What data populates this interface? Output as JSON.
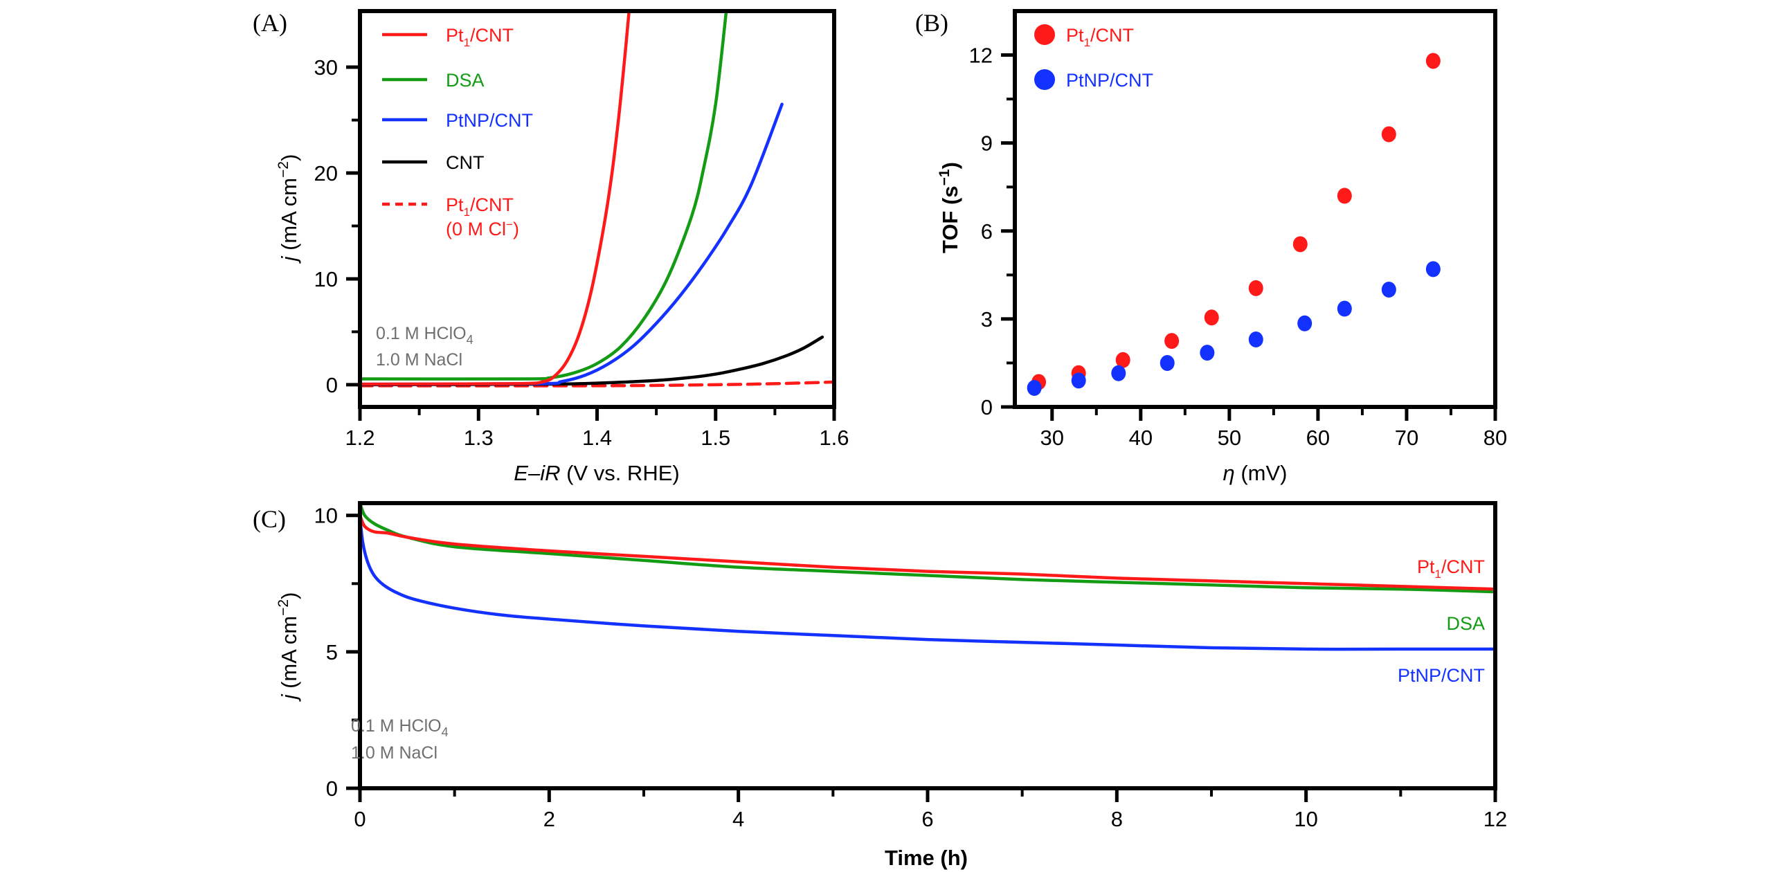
{
  "figure": {
    "panel_labels": [
      "(A)",
      "(B)",
      "(C)"
    ]
  },
  "colors": {
    "Pt1/CNT": "#ff1a1a",
    "DSA": "#139c13",
    "PtNP/CNT": "#1432ff",
    "CNT": "#000000",
    "note": "#6f6f6f"
  },
  "chart_data": [
    {
      "panel": "A",
      "type": "line",
      "title": "",
      "xlabel_italic": "E–iR",
      "xlabel_rest": " (V vs. RHE)",
      "ylabel_italic": "j",
      "ylabel_rest": " (mA cm",
      "ylabel_sup": "−2",
      "ylabel_close": ")",
      "xlim": [
        1.2,
        1.6
      ],
      "ylim": [
        -2.1,
        35.3
      ],
      "xticks": [
        1.2,
        1.3,
        1.4,
        1.5,
        1.6
      ],
      "xtick_labels": [
        "1.2",
        "1.3",
        "1.4",
        "1.5",
        "1.6"
      ],
      "xminor": [
        1.25,
        1.35,
        1.45,
        1.55
      ],
      "yticks": [
        0,
        10,
        20,
        30
      ],
      "ytick_labels": [
        "0",
        "10",
        "20",
        "30"
      ],
      "yminor": [
        5,
        15,
        25
      ],
      "grid": false,
      "legend_position": "top-left",
      "annotation": [
        "0.1 M HClO",
        "4",
        "1.0 M NaCl"
      ],
      "series": [
        {
          "name": "Pt1/CNT",
          "label_main": "Pt",
          "label_sub": "1",
          "label_rest": "/CNT",
          "color_key": "Pt1/CNT",
          "dash": false,
          "x": [
            1.2,
            1.33,
            1.355,
            1.365,
            1.375,
            1.385,
            1.395,
            1.405,
            1.412,
            1.418,
            1.423,
            1.427
          ],
          "y": [
            0.05,
            0.1,
            0.3,
            0.9,
            2.3,
            4.8,
            8.8,
            14.5,
            19.5,
            25.0,
            30.5,
            35.3
          ]
        },
        {
          "name": "DSA",
          "label_main": "DSA",
          "label_sub": "",
          "label_rest": "",
          "color_key": "DSA",
          "dash": false,
          "x": [
            1.2,
            1.34,
            1.36,
            1.38,
            1.4,
            1.42,
            1.44,
            1.46,
            1.48,
            1.49,
            1.5,
            1.509
          ],
          "y": [
            0.55,
            0.55,
            0.65,
            1.1,
            2.0,
            3.6,
            6.3,
            10.2,
            16.0,
            20.5,
            26.5,
            35.3
          ]
        },
        {
          "name": "PtNP/CNT",
          "label_main": "PtNP/CNT",
          "label_sub": "",
          "label_rest": "",
          "color_key": "PtNP/CNT",
          "dash": false,
          "x": [
            1.2,
            1.35,
            1.37,
            1.39,
            1.41,
            1.43,
            1.45,
            1.47,
            1.49,
            1.51,
            1.53,
            1.556
          ],
          "y": [
            0.05,
            0.1,
            0.3,
            0.9,
            2.0,
            3.6,
            5.8,
            8.4,
            11.4,
            14.8,
            18.9,
            26.5
          ]
        },
        {
          "name": "CNT",
          "label_main": "CNT",
          "label_sub": "",
          "label_rest": "",
          "color_key": "CNT",
          "dash": false,
          "x": [
            1.2,
            1.35,
            1.4,
            1.45,
            1.48,
            1.5,
            1.52,
            1.54,
            1.56,
            1.575,
            1.59
          ],
          "y": [
            0.0,
            0.05,
            0.15,
            0.4,
            0.7,
            1.0,
            1.45,
            2.0,
            2.75,
            3.5,
            4.5
          ]
        },
        {
          "name": "Pt1/CNT (0 M Cl-)",
          "label_main": "Pt",
          "label_sub": "1",
          "label_rest": "/CNT",
          "label_line2": "(0 M Cl",
          "label_line2_sup": "−",
          "label_line2_close": ")",
          "color_key": "Pt1/CNT",
          "dash": true,
          "x": [
            1.2,
            1.4,
            1.5,
            1.55,
            1.6
          ],
          "y": [
            -0.1,
            -0.1,
            0.0,
            0.1,
            0.25
          ]
        }
      ]
    },
    {
      "panel": "B",
      "type": "scatter",
      "title": "",
      "xlabel_italic": "η",
      "xlabel_rest": " (mV)",
      "ylabel_main": "TOF (s",
      "ylabel_sup": "−1",
      "ylabel_close": ")",
      "xlim": [
        25.8,
        80
      ],
      "ylim": [
        0,
        13.5
      ],
      "xticks": [
        30,
        40,
        50,
        60,
        70,
        80
      ],
      "xtick_labels": [
        "30",
        "40",
        "50",
        "60",
        "70",
        "80"
      ],
      "xminor": [
        25,
        35,
        45,
        55,
        65,
        75
      ],
      "yticks": [
        0,
        3,
        6,
        9,
        12
      ],
      "ytick_labels": [
        "0",
        "3",
        "6",
        "9",
        "12"
      ],
      "yminor": [
        1.5,
        4.5,
        7.5,
        10.5
      ],
      "grid": false,
      "legend_position": "top-left",
      "series": [
        {
          "name": "Pt1/CNT",
          "label_main": "Pt",
          "label_sub": "1",
          "label_rest": "/CNT",
          "color_key": "Pt1/CNT",
          "x": [
            28.5,
            33,
            38,
            43.5,
            48,
            53,
            58,
            63,
            68,
            73
          ],
          "y": [
            0.85,
            1.15,
            1.6,
            2.25,
            3.05,
            4.05,
            5.55,
            7.2,
            9.3,
            11.8
          ]
        },
        {
          "name": "PtNP/CNT",
          "label_main": "PtNP/CNT",
          "label_sub": "",
          "label_rest": "",
          "color_key": "PtNP/CNT",
          "x": [
            28,
            33,
            37.5,
            43,
            47.5,
            53,
            58.5,
            63,
            68,
            73
          ],
          "y": [
            0.65,
            0.9,
            1.15,
            1.5,
            1.85,
            2.3,
            2.85,
            3.35,
            4.0,
            4.7
          ]
        }
      ]
    },
    {
      "panel": "C",
      "type": "line",
      "title": "",
      "xlabel": "Time (h)",
      "ylabel_italic": "j",
      "ylabel_rest": " (mA cm",
      "ylabel_sup": "−2",
      "ylabel_close": ")",
      "xlim": [
        0,
        12
      ],
      "ylim": [
        0,
        10.45
      ],
      "xticks": [
        0,
        2,
        4,
        6,
        8,
        10,
        12
      ],
      "xtick_labels": [
        "0",
        "2",
        "4",
        "6",
        "8",
        "10",
        "12"
      ],
      "xminor": [
        1,
        3,
        5,
        7,
        9,
        11
      ],
      "yticks": [
        0,
        5,
        10
      ],
      "ytick_labels": [
        "0",
        "5",
        "10"
      ],
      "yminor": [
        2.5,
        7.5
      ],
      "grid": false,
      "legend_position": "right (inline labels)",
      "annotation": [
        "0.1 M HClO",
        "4",
        "1.0 M NaCl"
      ],
      "series": [
        {
          "name": "Pt1/CNT",
          "label_main": "Pt",
          "label_sub": "1",
          "label_rest": "/CNT",
          "color_key": "Pt1/CNT",
          "x": [
            0,
            0.05,
            0.15,
            0.3,
            0.5,
            1,
            2,
            3,
            4,
            5,
            6,
            7,
            8,
            9,
            10,
            11,
            12
          ],
          "y": [
            10.0,
            9.6,
            9.4,
            9.35,
            9.2,
            8.95,
            8.7,
            8.5,
            8.3,
            8.1,
            7.95,
            7.85,
            7.7,
            7.6,
            7.5,
            7.4,
            7.3
          ]
        },
        {
          "name": "DSA",
          "label_main": "DSA",
          "label_sub": "",
          "label_rest": "",
          "color_key": "DSA",
          "x": [
            0,
            0.05,
            0.15,
            0.3,
            0.5,
            1,
            2,
            3,
            4,
            5,
            6,
            7,
            8,
            9,
            10,
            11,
            12
          ],
          "y": [
            10.45,
            10.0,
            9.7,
            9.45,
            9.2,
            8.85,
            8.6,
            8.35,
            8.1,
            7.95,
            7.8,
            7.65,
            7.55,
            7.45,
            7.35,
            7.3,
            7.2
          ]
        },
        {
          "name": "PtNP/CNT",
          "label_main": "PtNP/CNT",
          "label_sub": "",
          "label_rest": "",
          "color_key": "PtNP/CNT",
          "x": [
            0,
            0.03,
            0.08,
            0.15,
            0.25,
            0.4,
            0.6,
            1,
            1.5,
            2,
            3,
            4,
            5,
            6,
            7,
            8,
            9,
            10,
            11,
            12
          ],
          "y": [
            9.9,
            9.0,
            8.3,
            7.8,
            7.45,
            7.15,
            6.9,
            6.6,
            6.35,
            6.2,
            5.95,
            5.75,
            5.6,
            5.45,
            5.35,
            5.25,
            5.15,
            5.1,
            5.1,
            5.1
          ]
        }
      ]
    }
  ]
}
